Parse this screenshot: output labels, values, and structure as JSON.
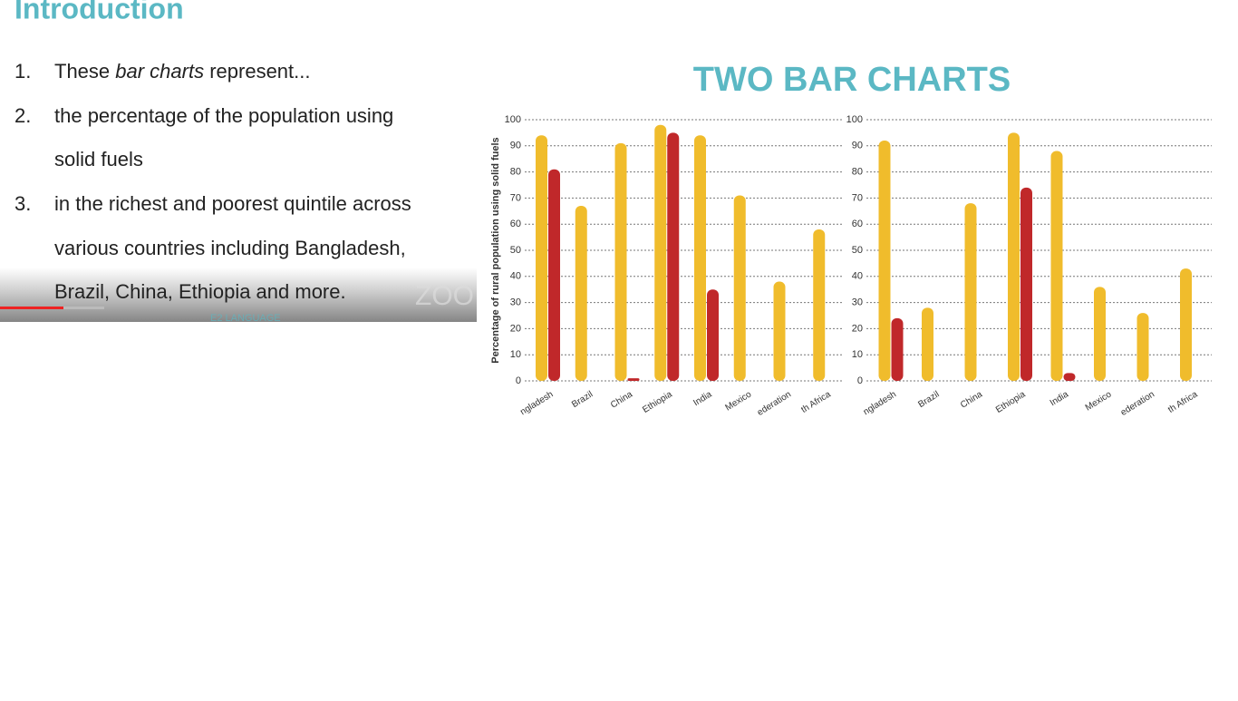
{
  "slide": {
    "title": "Introduction",
    "item1": {
      "number": "1.",
      "parts": [
        "These ",
        "bar charts",
        " represent..."
      ]
    },
    "item2": {
      "number": "2.",
      "lines": [
        "the percentage of the population using",
        "solid fuels"
      ]
    },
    "item3": {
      "number": "3.",
      "lines": [
        "in the richest and poorest quintile across",
        "various countries including Bangladesh,",
        "Brazil, China, Ethiopia and more."
      ]
    },
    "watermark": "ZOO",
    "logo": "E2 LANGUAGE"
  },
  "chart_heading": "TWO BAR CHARTS",
  "chart_data": [
    {
      "type": "bar",
      "ylabel": "Percentage of rural population using solid fuels",
      "categories": [
        "ngladesh",
        "Brazil",
        "China",
        "Ethiopia",
        "India",
        "Mexico",
        "ederation",
        "th Africa"
      ],
      "series": [
        {
          "color": "#f0bc2c",
          "values": [
            94,
            67,
            91,
            98,
            94,
            71,
            38,
            58
          ]
        },
        {
          "color": "#c0282a",
          "values": [
            81,
            0,
            1,
            95,
            35,
            0,
            0,
            0
          ]
        }
      ],
      "ylim": [
        0,
        100
      ],
      "yticks": [
        0,
        10,
        20,
        30,
        40,
        50,
        60,
        70,
        80,
        90,
        100
      ],
      "grid": true
    },
    {
      "type": "bar",
      "categories": [
        "ngladesh",
        "Brazil",
        "China",
        "Ethiopia",
        "India",
        "Mexico",
        "ederation",
        "th Africa"
      ],
      "series": [
        {
          "color": "#f0bc2c",
          "values": [
            92,
            28,
            68,
            95,
            88,
            36,
            26,
            43
          ]
        },
        {
          "color": "#c0282a",
          "values": [
            24,
            0,
            0,
            74,
            3,
            0,
            0,
            0
          ]
        }
      ],
      "ylim": [
        0,
        100
      ],
      "yticks": [
        0,
        10,
        20,
        30,
        40,
        50,
        60,
        70,
        80,
        90,
        100
      ],
      "grid": true
    }
  ]
}
